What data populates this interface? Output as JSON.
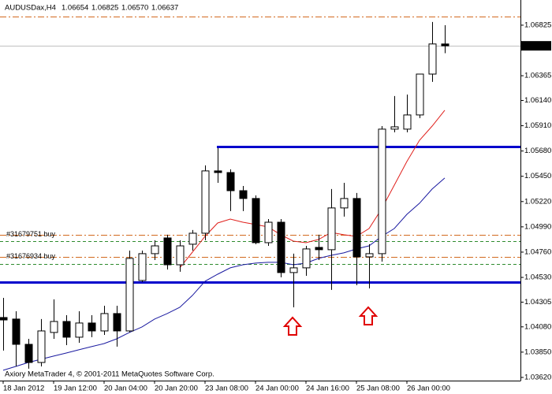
{
  "chart_data": {
    "type": "candlestick",
    "symbol": "AUDUSDax,H4",
    "last_bar_labels": [
      "1.06654",
      "1.06825",
      "1.06570",
      "1.06637"
    ],
    "footer": "Axiory MetaTrader 4, © 2001-2011 MetaQuotes Software Corp.",
    "categories": [
      "18 Jan 2012",
      null,
      null,
      null,
      "19 Jan 12:00",
      null,
      null,
      null,
      "20 Jan 04:00",
      null,
      null,
      null,
      "20 Jan 20:00",
      null,
      null,
      null,
      "23 Jan 08:00",
      null,
      null,
      null,
      "24 Jan 00:00",
      null,
      null,
      null,
      "24 Jan 16:00",
      null,
      null,
      null,
      "25 Jan 08:00",
      null,
      null,
      null,
      "26 Jan 00:00",
      null,
      null,
      null
    ],
    "open": [
      1.04165,
      1.04151,
      1.03921,
      1.03756,
      1.04029,
      1.04129,
      1.03986,
      1.04115,
      1.04043,
      1.04201,
      1.04043,
      1.04502,
      1.04746,
      1.04889,
      1.04645,
      1.04832,
      1.04932,
      1.05499,
      1.05484,
      1.05319,
      1.05248,
      1.04846,
      1.05032,
      1.04574,
      1.04617,
      1.04803,
      1.04782,
      1.05162,
      1.05248,
      1.04717,
      1.04746,
      1.05879,
      1.05879,
      1.06008,
      1.0638,
      1.06654
    ],
    "high": [
      1.04344,
      1.04222,
      1.03971,
      1.04151,
      1.0433,
      1.04186,
      1.04222,
      1.04186,
      1.04272,
      1.04272,
      1.04774,
      1.04774,
      1.04868,
      1.04918,
      1.04868,
      1.04961,
      1.05549,
      1.05706,
      1.05513,
      1.05362,
      1.05276,
      1.05061,
      1.05061,
      1.04746,
      1.04817,
      1.04918,
      1.05334,
      1.05391,
      1.05298,
      1.04832,
      1.05907,
      1.0618,
      1.06194,
      1.0638,
      1.06854,
      1.06825
    ],
    "low": [
      1.03864,
      1.0372,
      1.03699,
      1.0372,
      1.03971,
      1.03914,
      1.03935,
      1.03986,
      1.04007,
      1.039,
      1.04029,
      1.04488,
      1.04688,
      1.04602,
      1.04581,
      1.04774,
      1.04868,
      1.05391,
      1.05133,
      1.05133,
      1.04832,
      1.04817,
      1.04531,
      1.04258,
      1.04545,
      1.04688,
      1.04416,
      1.05083,
      1.04459,
      1.0443,
      1.04674,
      1.0585,
      1.0585,
      1.05979,
      1.06309,
      1.0657
    ],
    "close": [
      1.04143,
      1.03921,
      1.03756,
      1.04043,
      1.04129,
      1.03986,
      1.04115,
      1.04043,
      1.04201,
      1.04043,
      1.04703,
      1.04746,
      1.04817,
      1.04645,
      1.04817,
      1.04932,
      1.05499,
      1.05484,
      1.05319,
      1.05248,
      1.04846,
      1.05032,
      1.04574,
      1.04617,
      1.04789,
      1.04782,
      1.05162,
      1.05248,
      1.04717,
      1.04746,
      1.05879,
      1.059,
      1.06008,
      1.0638,
      1.06654,
      1.06637
    ],
    "bull_color": "#ffffff",
    "bear_color": "#000000",
    "ylim": [
      1.03591,
      1.07054
    ],
    "yticks": [
      1.06825,
      1.06365,
      {
        "value": 1.0614,
        "label": "1.06140"
      },
      {
        "value": 1.0591,
        "label": "1.05910"
      },
      {
        "value": 1.0568,
        "label": "1.05680"
      },
      {
        "value": 1.0545,
        "label": "1.05450"
      },
      {
        "value": 1.0522,
        "label": "1.05220"
      },
      {
        "value": 1.0499,
        "label": "1.04990"
      },
      {
        "value": 1.0476,
        "label": "1.04760"
      },
      {
        "value": 1.0453,
        "label": "1.04530"
      },
      1.04305,
      {
        "value": 1.0408,
        "label": "1.04080"
      },
      {
        "value": 1.0385,
        "label": "1.03850"
      },
      {
        "value": 1.0362,
        "label": "1.03620"
      }
    ],
    "lines": [
      {
        "color": "#e0201c",
        "values": [
          null,
          null,
          null,
          null,
          null,
          null,
          null,
          null,
          null,
          null,
          null,
          null,
          null,
          null,
          1.04617,
          1.0476,
          1.04903,
          1.05025,
          1.05061,
          1.05032,
          1.05011,
          1.04989,
          1.04918,
          1.0486,
          1.04846,
          1.04875,
          1.04939,
          1.04918,
          1.04903,
          1.04975,
          1.05154,
          1.05369,
          1.05585,
          1.05778,
          1.05907,
          1.06051
        ]
      },
      {
        "color": "#1a1aa0",
        "values": [
          1.03685,
          1.0372,
          1.03756,
          1.03785,
          1.03814,
          1.03842,
          1.03871,
          1.039,
          1.03928,
          1.03971,
          1.04029,
          1.04079,
          1.04151,
          1.04201,
          1.04258,
          1.04366,
          1.04495,
          1.04559,
          1.04617,
          1.04645,
          1.0466,
          1.04667,
          1.04667,
          1.04645,
          1.0466,
          1.04703,
          1.04731,
          1.04753,
          1.04789,
          1.04817,
          1.04903,
          1.04975,
          1.05104,
          1.05205,
          1.05334,
          1.05434
        ]
      }
    ],
    "levels": [
      {
        "value": 1.06904,
        "color": "#d2691e",
        "style": "dashdot"
      },
      {
        "value": 1.06637,
        "color": "#c0c0c0",
        "style": "solid"
      },
      {
        "value": 1.05721,
        "color": "#0000cc",
        "style": "thick",
        "start_index": 17
      },
      {
        "value": 1.04488,
        "color": "#0000cc",
        "style": "thick"
      },
      {
        "value": 1.04918,
        "color": "#d2691e",
        "style": "dashdot",
        "label": "#31679751 buy"
      },
      {
        "value": 1.0486,
        "color": "#2e8b2e",
        "style": "dashed"
      },
      {
        "value": 1.04717,
        "color": "#d2691e",
        "style": "dashdot",
        "label": "#31676934 buy"
      },
      {
        "value": 1.04652,
        "color": "#2e8b2e",
        "style": "dashed"
      }
    ]
  }
}
